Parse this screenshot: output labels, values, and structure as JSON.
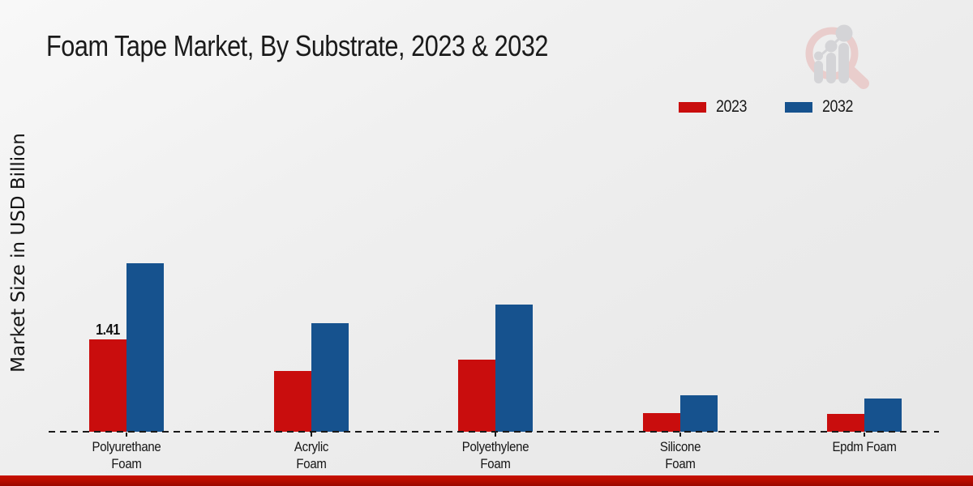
{
  "chart_data": {
    "type": "bar",
    "title": "Foam Tape Market, By Substrate, 2023 & 2032",
    "xlabel": "",
    "ylabel": "Market Size in USD Billion",
    "categories": [
      "Polyurethane Foam",
      "Acrylic Foam",
      "Polyethylene Foam",
      "Silicone Foam",
      "Epdm Foam"
    ],
    "category_display_lines": [
      [
        "Polyurethane",
        "Foam"
      ],
      [
        "Acrylic",
        "Foam"
      ],
      [
        "Polyethylene",
        "Foam"
      ],
      [
        "Silicone",
        "Foam"
      ],
      [
        "Epdm Foam"
      ]
    ],
    "series": [
      {
        "name": "2023",
        "color": "#c90d0d",
        "values": [
          1.41,
          0.93,
          1.1,
          0.28,
          0.27
        ]
      },
      {
        "name": "2032",
        "color": "#16528e",
        "values": [
          2.57,
          1.66,
          1.94,
          0.56,
          0.51
        ]
      }
    ],
    "value_labels": [
      {
        "series_index": 0,
        "category_index": 0,
        "text": "1.41"
      }
    ],
    "ylim": [
      0,
      2.9
    ],
    "grid": false,
    "legend_position": "top-right",
    "axis_style": "dashed-baseline-only"
  },
  "legend": {
    "items": [
      {
        "label": "2023",
        "color": "#c90d0d"
      },
      {
        "label": "2032",
        "color": "#16528e"
      }
    ]
  },
  "watermark": {
    "icon_name": "market-research-chart-magnifier-logo"
  },
  "footer": {
    "band_color": "#b40c00"
  },
  "colors": {
    "background": "#ededed",
    "title_text": "#1a1a1a",
    "axis_text": "#141414",
    "series_2023": "#c90d0d",
    "series_2032": "#16528e"
  }
}
